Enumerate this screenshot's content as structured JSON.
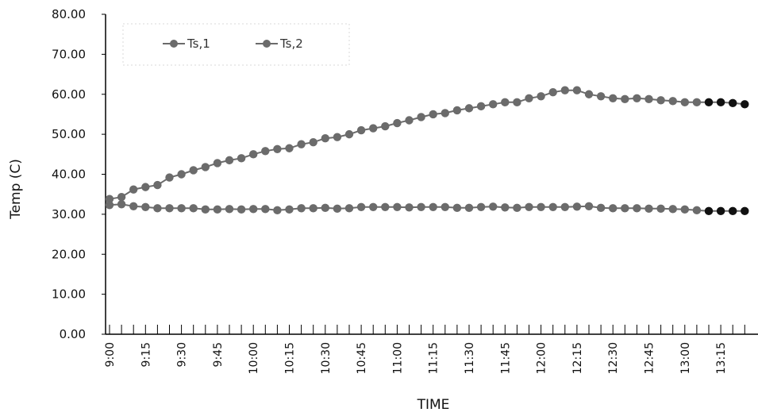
{
  "chart_data": {
    "type": "line",
    "title": "",
    "xlabel": "TIME",
    "ylabel": "Temp (C)",
    "ylim": [
      0,
      80
    ],
    "y_ticks": [
      "0.00",
      "10.00",
      "20.00",
      "30.00",
      "40.00",
      "50.00",
      "60.00",
      "70.00",
      "80.00"
    ],
    "x_tick_labels": [
      "9:00",
      "9:15",
      "9:30",
      "9:45",
      "10:00",
      "10:15",
      "10:30",
      "10:45",
      "11:00",
      "11:15",
      "11:30",
      "11:45",
      "12:00",
      "12:15",
      "12:30",
      "12:45",
      "13:00",
      "13:15"
    ],
    "x_interval_minutes": 5,
    "x_start": "9:00",
    "grid": false,
    "legend_position": "top-left",
    "series": [
      {
        "name": "Ts,1",
        "color": "#6b6b6b",
        "values": [
          33.8,
          34.3,
          36.2,
          36.8,
          37.3,
          39.2,
          40.0,
          41.0,
          41.8,
          42.8,
          43.5,
          44.0,
          45.0,
          45.8,
          46.3,
          46.5,
          47.5,
          48.0,
          49.0,
          49.3,
          50.0,
          51.0,
          51.5,
          52.0,
          52.8,
          53.5,
          54.3,
          55.0,
          55.3,
          56.0,
          56.5,
          57.0,
          57.5,
          58.0,
          58.0,
          59.0,
          59.5,
          60.5,
          61.0,
          61.0,
          60.0,
          59.5,
          59.0,
          58.8,
          59.0,
          58.8,
          58.5,
          58.3,
          58.0,
          58.0,
          58.0,
          58.0,
          57.8,
          57.5,
          58.0
        ]
      },
      {
        "name": "Ts,2",
        "color": "#6b6b6b",
        "values": [
          32.3,
          32.5,
          32.0,
          31.8,
          31.5,
          31.5,
          31.5,
          31.5,
          31.2,
          31.2,
          31.3,
          31.2,
          31.3,
          31.3,
          31.0,
          31.2,
          31.5,
          31.5,
          31.6,
          31.4,
          31.5,
          31.8,
          31.8,
          31.8,
          31.8,
          31.7,
          31.8,
          31.8,
          31.8,
          31.6,
          31.6,
          31.8,
          31.9,
          31.7,
          31.6,
          31.8,
          31.8,
          31.8,
          31.8,
          31.9,
          32.0,
          31.6,
          31.5,
          31.5,
          31.5,
          31.4,
          31.4,
          31.3,
          31.2,
          31.0,
          30.8,
          30.8,
          30.8,
          30.8,
          31.0
        ]
      }
    ],
    "highlight_color": "#111111"
  }
}
